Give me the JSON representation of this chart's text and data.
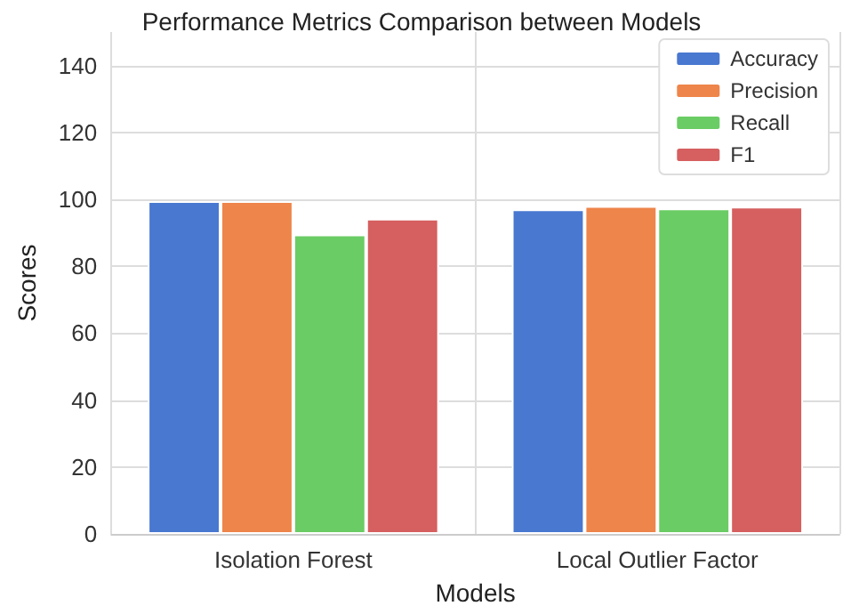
{
  "chart_data": {
    "type": "bar",
    "title": "Performance Metrics Comparison between Models",
    "xlabel": "Models",
    "ylabel": "Scores",
    "categories": [
      "Isolation Forest",
      "Local Outlier Factor"
    ],
    "series": [
      {
        "name": "Accuracy",
        "color": "#4878d0",
        "values": [
          99.5,
          97
        ]
      },
      {
        "name": "Precision",
        "color": "#ee854a",
        "values": [
          99.5,
          98
        ]
      },
      {
        "name": "Recall",
        "color": "#6acc64",
        "values": [
          89.5,
          97.3
        ]
      },
      {
        "name": "F1",
        "color": "#d65f5f",
        "values": [
          94.2,
          97.8
        ]
      }
    ],
    "ylim": [
      0,
      150
    ],
    "yticks": [
      0,
      20,
      40,
      60,
      80,
      100,
      120,
      140
    ],
    "grid": true,
    "legend": "top right"
  }
}
